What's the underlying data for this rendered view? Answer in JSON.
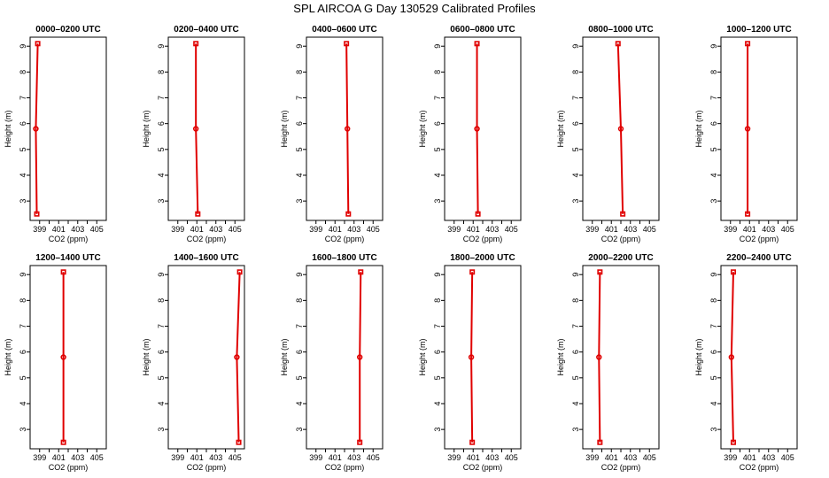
{
  "chart_data": {
    "type": "line",
    "title": "SPL AIRCOA G  Day 130529  Calibrated Profiles",
    "xlabel": "CO2 (ppm)",
    "ylabel": "Height (m)",
    "xlim": [
      398,
      406
    ],
    "ylim": [
      2.25,
      9.35
    ],
    "xticks": [
      399,
      400,
      401,
      402,
      403,
      404,
      405
    ],
    "xtick_labels": [
      "399",
      "",
      "401",
      "",
      "403",
      "",
      "405"
    ],
    "yticks": [
      3,
      4,
      5,
      6,
      7,
      8,
      9
    ],
    "ytick_labels": [
      "3",
      "4",
      "5",
      "6",
      "7",
      "8",
      "9"
    ],
    "heights": [
      2.5,
      5.8,
      9.1
    ],
    "panels": [
      {
        "title": "0000–0200 UTC",
        "co2": [
          398.7,
          398.6,
          398.8
        ]
      },
      {
        "title": "0200–0400 UTC",
        "co2": [
          401.1,
          400.9,
          400.9
        ]
      },
      {
        "title": "0400–0600 UTC",
        "co2": [
          402.4,
          402.3,
          402.2
        ]
      },
      {
        "title": "0600–0800 UTC",
        "co2": [
          401.5,
          401.4,
          401.4
        ]
      },
      {
        "title": "0800–1000 UTC",
        "co2": [
          402.2,
          402.0,
          401.7
        ]
      },
      {
        "title": "1000–1200 UTC",
        "co2": [
          400.8,
          400.8,
          400.8
        ]
      },
      {
        "title": "1200–1400 UTC",
        "co2": [
          401.5,
          401.5,
          401.5
        ]
      },
      {
        "title": "1400–1600 UTC",
        "co2": [
          405.4,
          405.2,
          405.5
        ]
      },
      {
        "title": "1600–1800 UTC",
        "co2": [
          403.6,
          403.6,
          403.7
        ]
      },
      {
        "title": "1800–2000 UTC",
        "co2": [
          400.9,
          400.8,
          400.9
        ]
      },
      {
        "title": "2000–2200 UTC",
        "co2": [
          399.8,
          399.7,
          399.8
        ]
      },
      {
        "title": "2200–2400 UTC",
        "co2": [
          399.3,
          399.1,
          399.3
        ]
      }
    ]
  }
}
